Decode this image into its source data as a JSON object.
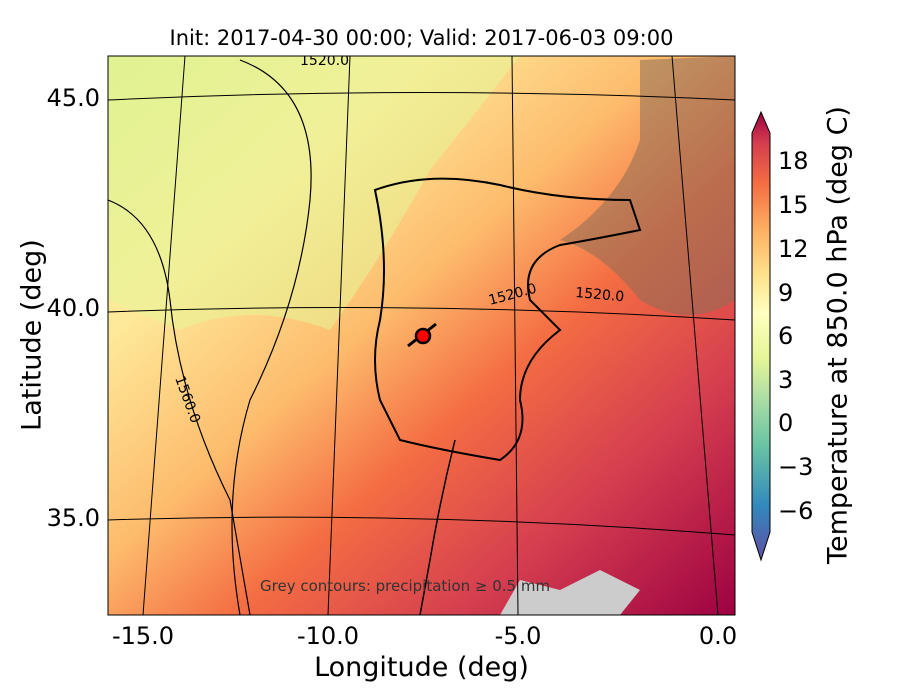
{
  "title": "Init: 2017-04-30 00:00; Valid: 2017-06-03 09:00",
  "chart_data": {
    "type": "heatmap",
    "title": "Init: 2017-04-30 00:00; Valid: 2017-06-03 09:00",
    "xlabel": "Longitude (deg)",
    "ylabel": "Latitude (deg)",
    "xlim": [
      -16,
      0.3
    ],
    "ylim": [
      32.5,
      46.2
    ],
    "xticks": [
      "-15.0",
      "-10.0",
      "-5.0",
      "0.0"
    ],
    "yticks": [
      "45.0",
      "40.0",
      "35.0"
    ],
    "colorbar": {
      "label": "Temperature at 850.0 hPa (deg C)",
      "ticks": [
        "18",
        "15",
        "12",
        "9",
        "6",
        "3",
        "0",
        "−3",
        "−6"
      ],
      "range": [
        -8,
        20
      ],
      "extend": "both",
      "colormap": "Spectral_r"
    },
    "contour_labels": [
      "1520.0",
      "1520.0",
      "1520.0",
      "1560.0"
    ],
    "annotation": "Grey contours: precipitation ≥ 0.5 mm",
    "marker": {
      "lon": -7.6,
      "lat": 39.4,
      "color": "#ff0000"
    }
  }
}
